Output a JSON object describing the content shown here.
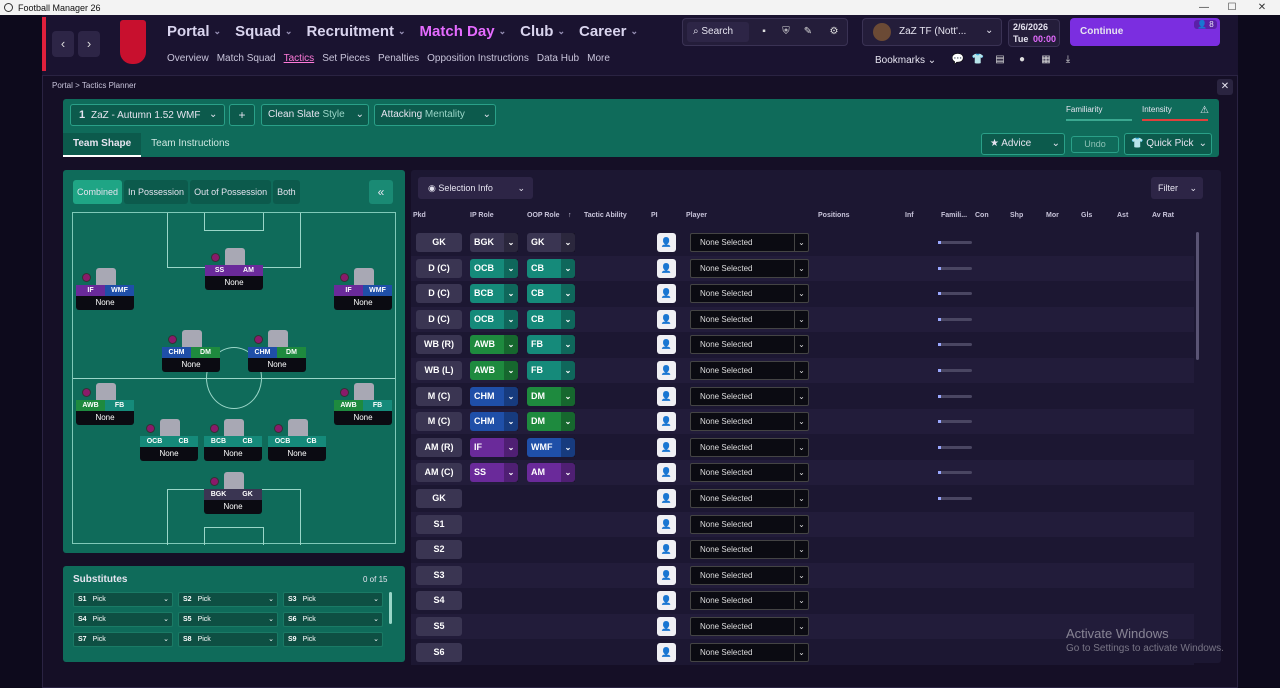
{
  "window": {
    "title": "Football Manager 26",
    "min": "—",
    "max": "☐",
    "close": "✕"
  },
  "nav": {
    "back": "‹",
    "forward": "›",
    "main": [
      {
        "label": "Portal",
        "active": false
      },
      {
        "label": "Squad",
        "active": false
      },
      {
        "label": "Recruitment",
        "active": false
      },
      {
        "label": "Match Day",
        "active": true
      },
      {
        "label": "Club",
        "active": false
      },
      {
        "label": "Career",
        "active": false
      }
    ],
    "sub": [
      {
        "label": "Overview",
        "active": false
      },
      {
        "label": "Match Squad",
        "active": false
      },
      {
        "label": "Tactics",
        "active": true
      },
      {
        "label": "Set Pieces",
        "active": false
      },
      {
        "label": "Penalties",
        "active": false
      },
      {
        "label": "Opposition Instructions",
        "active": false
      },
      {
        "label": "Data Hub",
        "active": false
      },
      {
        "label": "More",
        "active": false
      }
    ]
  },
  "search": {
    "label": "Search"
  },
  "manager": {
    "label": "ZaZ TF (Nott'..."
  },
  "date": {
    "date": "2/6/2026",
    "day": "Tue",
    "time": "00:00"
  },
  "continue": {
    "label": "Continue",
    "count": "8"
  },
  "bookmarks": {
    "label": "Bookmarks"
  },
  "breadcrumb": {
    "root": "Portal",
    "sep": ">",
    "current": "Tactics Planner"
  },
  "tactic": {
    "slot": "1",
    "name": "ZaZ - Autumn 1.52 WMF",
    "add": "+",
    "style_value": "Clean Slate",
    "style_label": "Style",
    "mentality_value": "Attacking",
    "mentality_label": "Mentality",
    "familiarity": "Familiarity",
    "intensity": "Intensity",
    "intensity_warning": "⚠"
  },
  "tabs": [
    {
      "label": "Team Shape",
      "active": true
    },
    {
      "label": "Team Instructions",
      "active": false
    }
  ],
  "actions": {
    "advice": "Advice",
    "undo": "Undo",
    "quick_pick": "Quick Pick"
  },
  "pitch_tabs": [
    {
      "label": "Combined",
      "active": true
    },
    {
      "label": "In Possession",
      "active": false
    },
    {
      "label": "Out of Possession",
      "active": false
    },
    {
      "label": "Both",
      "active": false
    }
  ],
  "collapse": "«",
  "pitch_players": [
    {
      "ip": "IF",
      "oop": "WMF",
      "name": "None"
    },
    {
      "ip": "SS",
      "oop": "AM",
      "name": "None"
    },
    {
      "ip": "IF",
      "oop": "WMF",
      "name": "None"
    },
    {
      "ip": "CHM",
      "oop": "DM",
      "name": "None"
    },
    {
      "ip": "CHM",
      "oop": "DM",
      "name": "None"
    },
    {
      "ip": "AWB",
      "oop": "FB",
      "name": "None"
    },
    {
      "ip": "AWB",
      "oop": "FB",
      "name": "None"
    },
    {
      "ip": "OCB",
      "oop": "CB",
      "name": "None"
    },
    {
      "ip": "BCB",
      "oop": "CB",
      "name": "None"
    },
    {
      "ip": "OCB",
      "oop": "CB",
      "name": "None"
    },
    {
      "ip": "BGK",
      "oop": "GK",
      "name": "None"
    }
  ],
  "substitutes": {
    "title": "Substitutes",
    "count": "0 of 15",
    "slots": [
      {
        "slot": "S1",
        "label": "Pick"
      },
      {
        "slot": "S2",
        "label": "Pick"
      },
      {
        "slot": "S3",
        "label": "Pick"
      },
      {
        "slot": "S4",
        "label": "Pick"
      },
      {
        "slot": "S5",
        "label": "Pick"
      },
      {
        "slot": "S6",
        "label": "Pick"
      },
      {
        "slot": "S7",
        "label": "Pick"
      },
      {
        "slot": "S8",
        "label": "Pick"
      },
      {
        "slot": "S9",
        "label": "Pick"
      }
    ]
  },
  "table": {
    "selection_info": "Selection Info",
    "filter": "Filter",
    "headers": {
      "pkd": "Pkd",
      "ip_role": "IP Role",
      "oop_role": "OOP Role",
      "tactic_ability": "Tactic Ability",
      "pi": "PI",
      "player": "Player",
      "positions": "Positions",
      "inf": "Inf",
      "familiarity": "Famili...",
      "con": "Con",
      "shp": "Shp",
      "mor": "Mor",
      "gls": "Gls",
      "ast": "Ast",
      "av_rat": "Av Rat"
    },
    "rows": [
      {
        "pos": "GK",
        "ip": "BGK",
        "oop": "GK",
        "player": "None Selected"
      },
      {
        "pos": "D (C)",
        "ip": "OCB",
        "oop": "CB",
        "player": "None Selected"
      },
      {
        "pos": "D (C)",
        "ip": "BCB",
        "oop": "CB",
        "player": "None Selected"
      },
      {
        "pos": "D (C)",
        "ip": "OCB",
        "oop": "CB",
        "player": "None Selected"
      },
      {
        "pos": "WB (R)",
        "ip": "AWB",
        "oop": "FB",
        "player": "None Selected"
      },
      {
        "pos": "WB (L)",
        "ip": "AWB",
        "oop": "FB",
        "player": "None Selected"
      },
      {
        "pos": "M (C)",
        "ip": "CHM",
        "oop": "DM",
        "player": "None Selected"
      },
      {
        "pos": "M (C)",
        "ip": "CHM",
        "oop": "DM",
        "player": "None Selected"
      },
      {
        "pos": "AM (R)",
        "ip": "IF",
        "oop": "WMF",
        "player": "None Selected"
      },
      {
        "pos": "AM (C)",
        "ip": "SS",
        "oop": "AM",
        "player": "None Selected"
      },
      {
        "pos": "GK",
        "ip": "",
        "oop": "",
        "player": "None Selected"
      },
      {
        "pos": "S1",
        "ip": "",
        "oop": "",
        "player": "None Selected"
      },
      {
        "pos": "S2",
        "ip": "",
        "oop": "",
        "player": "None Selected"
      },
      {
        "pos": "S3",
        "ip": "",
        "oop": "",
        "player": "None Selected"
      },
      {
        "pos": "S4",
        "ip": "",
        "oop": "",
        "player": "None Selected"
      },
      {
        "pos": "S5",
        "ip": "",
        "oop": "",
        "player": "None Selected"
      },
      {
        "pos": "S6",
        "ip": "",
        "oop": "",
        "player": "None Selected"
      }
    ]
  },
  "watermark": {
    "line1": "Activate Windows",
    "line2": "Go to Settings to activate Windows."
  },
  "colors": {
    "accent": "#e56bff",
    "continue": "#7b2ee0",
    "teal": "#0f6b5a",
    "role_purple": "#6a2a9a",
    "role_blue": "#1f4fa8",
    "role_green": "#1e8a3e",
    "role_teal": "#158a7a"
  }
}
